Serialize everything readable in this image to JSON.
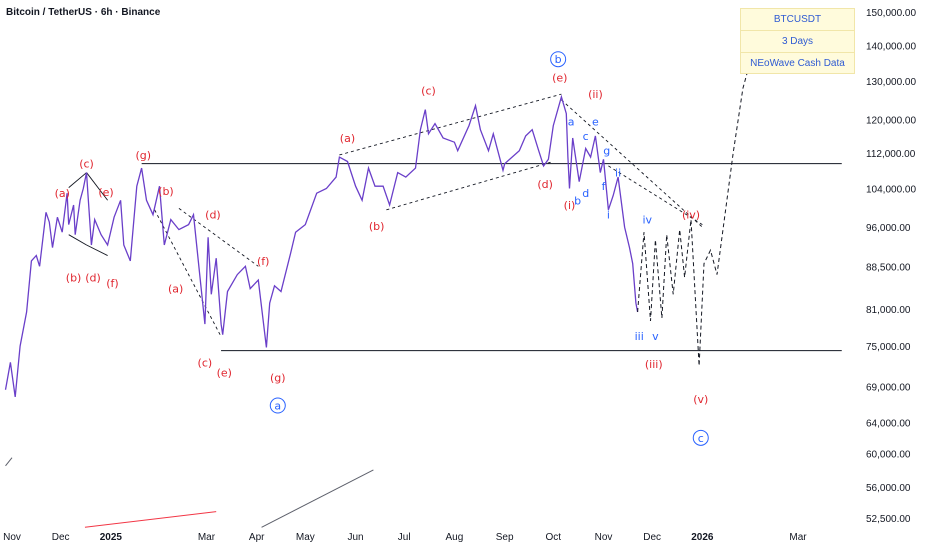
{
  "title": "Bitcoin / TetherUS · 6h · Binance",
  "info_box": {
    "symbol": "BTCUSDT",
    "period": "3 Days",
    "source": "NEoWave Cash Data"
  },
  "colors": {
    "price_line": "#6a3fc9",
    "red_label": "#e0262f",
    "blue_label": "#2962ff",
    "level_line": "#131722",
    "axis_text": "#131722"
  },
  "chart_data": {
    "type": "line",
    "title": "Bitcoin / TetherUS · 6h · Binance",
    "y_axis": {
      "scale": "log",
      "ylim": [
        51000,
        152000
      ],
      "ticks": [
        150000,
        140000,
        130000,
        120000,
        112000,
        104000,
        96000,
        88500,
        81000,
        75000,
        69000,
        64000,
        60000,
        56000,
        52500
      ],
      "tick_labels": [
        "150,000.00",
        "140,000.00",
        "130,000.00",
        "120,000.00",
        "112,000.00",
        "104,000.00",
        "96,000.00",
        "88,500.00",
        "81,000.00",
        "75,000.00",
        "69,000.00",
        "64,000.00",
        "60,000.00",
        "56,000.00",
        "52,500.00"
      ],
      "position": "right"
    },
    "x_axis": {
      "start": "2024-10-28",
      "end": "2026-03-28",
      "ticks": [
        {
          "date": "2024-11-01",
          "label": "Nov"
        },
        {
          "date": "2024-12-01",
          "label": "Dec"
        },
        {
          "date": "2025-01-01",
          "label": "2025",
          "bold": true
        },
        {
          "date": "2025-03-01",
          "label": "Mar"
        },
        {
          "date": "2025-04-01",
          "label": "Apr"
        },
        {
          "date": "2025-05-01",
          "label": "May"
        },
        {
          "date": "2025-06-01",
          "label": "Jun"
        },
        {
          "date": "2025-07-01",
          "label": "Jul"
        },
        {
          "date": "2025-08-01",
          "label": "Aug"
        },
        {
          "date": "2025-09-01",
          "label": "Sep"
        },
        {
          "date": "2025-10-01",
          "label": "Oct"
        },
        {
          "date": "2025-11-01",
          "label": "Nov"
        },
        {
          "date": "2025-12-01",
          "label": "Dec"
        },
        {
          "date": "2026-01-01",
          "label": "2026",
          "bold": true
        },
        {
          "date": "2026-03-01",
          "label": "Mar"
        }
      ]
    },
    "grid": false,
    "price_series": {
      "name": "",
      "points": [
        [
          "2024-10-28",
          68500
        ],
        [
          "2024-10-31",
          72500
        ],
        [
          "2024-11-03",
          67500
        ],
        [
          "2024-11-06",
          75000
        ],
        [
          "2024-11-10",
          80500
        ],
        [
          "2024-11-13",
          89500
        ],
        [
          "2024-11-16",
          90500
        ],
        [
          "2024-11-18",
          88500
        ],
        [
          "2024-11-22",
          99000
        ],
        [
          "2024-11-24",
          97000
        ],
        [
          "2024-11-26",
          92000
        ],
        [
          "2024-11-29",
          98000
        ],
        [
          "2024-12-02",
          95000
        ],
        [
          "2024-12-05",
          103000
        ],
        [
          "2024-12-06",
          96500
        ],
        [
          "2024-12-09",
          100500
        ],
        [
          "2024-12-10",
          94500
        ],
        [
          "2024-12-13",
          101500
        ],
        [
          "2024-12-15",
          104000
        ],
        [
          "2024-12-17",
          107500
        ],
        [
          "2024-12-18",
          102000
        ],
        [
          "2024-12-20",
          92500
        ],
        [
          "2024-12-22",
          97500
        ],
        [
          "2024-12-26",
          94500
        ],
        [
          "2024-12-30",
          92500
        ],
        [
          "2025-01-03",
          98000
        ],
        [
          "2025-01-07",
          101500
        ],
        [
          "2025-01-09",
          92500
        ],
        [
          "2025-01-13",
          89500
        ],
        [
          "2025-01-17",
          104500
        ],
        [
          "2025-01-20",
          108500
        ],
        [
          "2025-01-23",
          101500
        ],
        [
          "2025-01-27",
          98500
        ],
        [
          "2025-01-31",
          104500
        ],
        [
          "2025-02-03",
          92500
        ],
        [
          "2025-02-07",
          97500
        ],
        [
          "2025-02-12",
          95500
        ],
        [
          "2025-02-18",
          96500
        ],
        [
          "2025-02-21",
          98500
        ],
        [
          "2025-02-25",
          86500
        ],
        [
          "2025-02-28",
          78500
        ],
        [
          "2025-03-02",
          94000
        ],
        [
          "2025-03-04",
          83500
        ],
        [
          "2025-03-07",
          90000
        ],
        [
          "2025-03-10",
          78500
        ],
        [
          "2025-03-11",
          76800
        ],
        [
          "2025-03-14",
          84000
        ],
        [
          "2025-03-20",
          87000
        ],
        [
          "2025-03-25",
          88500
        ],
        [
          "2025-03-28",
          84500
        ],
        [
          "2025-04-02",
          86000
        ],
        [
          "2025-04-07",
          74800
        ],
        [
          "2025-04-09",
          82000
        ],
        [
          "2025-04-12",
          85000
        ],
        [
          "2025-04-16",
          84000
        ],
        [
          "2025-04-22",
          91000
        ],
        [
          "2025-04-25",
          95000
        ],
        [
          "2025-05-01",
          96500
        ],
        [
          "2025-05-08",
          103000
        ],
        [
          "2025-05-14",
          104000
        ],
        [
          "2025-05-20",
          106500
        ],
        [
          "2025-05-22",
          111000
        ],
        [
          "2025-05-27",
          110000
        ],
        [
          "2025-06-01",
          104500
        ],
        [
          "2025-06-05",
          101500
        ],
        [
          "2025-06-09",
          108500
        ],
        [
          "2025-06-13",
          104500
        ],
        [
          "2025-06-18",
          104500
        ],
        [
          "2025-06-22",
          100500
        ],
        [
          "2025-06-27",
          107500
        ],
        [
          "2025-07-02",
          106500
        ],
        [
          "2025-07-08",
          108500
        ],
        [
          "2025-07-11",
          117500
        ],
        [
          "2025-07-14",
          122500
        ],
        [
          "2025-07-16",
          116500
        ],
        [
          "2025-07-20",
          119000
        ],
        [
          "2025-07-25",
          115500
        ],
        [
          "2025-08-01",
          114500
        ],
        [
          "2025-08-03",
          112500
        ],
        [
          "2025-08-10",
          118500
        ],
        [
          "2025-08-14",
          123500
        ],
        [
          "2025-08-17",
          117500
        ],
        [
          "2025-08-22",
          112500
        ],
        [
          "2025-08-25",
          116500
        ],
        [
          "2025-08-31",
          108000
        ],
        [
          "2025-09-01",
          109500
        ],
        [
          "2025-09-10",
          112500
        ],
        [
          "2025-09-14",
          116000
        ],
        [
          "2025-09-18",
          117500
        ],
        [
          "2025-09-22",
          112500
        ],
        [
          "2025-09-25",
          109000
        ],
        [
          "2025-09-28",
          110500
        ],
        [
          "2025-10-01",
          118500
        ],
        [
          "2025-10-06",
          125800
        ],
        [
          "2025-10-09",
          121500
        ],
        [
          "2025-10-10",
          111000
        ],
        [
          "2025-10-11",
          104000
        ],
        [
          "2025-10-13",
          115500
        ],
        [
          "2025-10-17",
          105500
        ],
        [
          "2025-10-21",
          113000
        ],
        [
          "2025-10-24",
          111000
        ],
        [
          "2025-10-27",
          116000
        ],
        [
          "2025-10-30",
          107500
        ],
        [
          "2025-11-01",
          110500
        ],
        [
          "2025-11-04",
          99500
        ],
        [
          "2025-11-07",
          102500
        ],
        [
          "2025-11-10",
          106500
        ],
        [
          "2025-11-14",
          96000
        ],
        [
          "2025-11-17",
          92000
        ],
        [
          "2025-11-19",
          89000
        ],
        [
          "2025-11-21",
          82000
        ],
        [
          "2025-11-22",
          80500
        ]
      ]
    },
    "projection_path": {
      "style": "dashed",
      "points": [
        [
          "2025-11-22",
          80500
        ],
        [
          "2025-11-26",
          95000
        ],
        [
          "2025-11-30",
          79000
        ],
        [
          "2025-12-03",
          93500
        ],
        [
          "2025-12-07",
          79500
        ],
        [
          "2025-12-10",
          94500
        ],
        [
          "2025-12-14",
          83500
        ],
        [
          "2025-12-18",
          95500
        ],
        [
          "2025-12-21",
          86500
        ],
        [
          "2025-12-25",
          97500
        ],
        [
          "2025-12-30",
          72000
        ],
        [
          "2026-01-02",
          89000
        ],
        [
          "2026-01-06",
          91500
        ],
        [
          "2026-01-10",
          87000
        ],
        [
          "2026-01-20",
          112000
        ],
        [
          "2026-01-26",
          128000
        ],
        [
          "2026-01-30",
          134500
        ]
      ]
    },
    "horizontal_levels": [
      {
        "value": 109500,
        "from": "2025-01-20",
        "to": "2026-03-28"
      },
      {
        "value": 74300,
        "from": "2025-03-10",
        "to": "2026-03-28"
      }
    ],
    "channels": [
      {
        "style": "dashed",
        "from": [
          "2025-05-22",
          111500
        ],
        "to": [
          "2025-10-06",
          126500
        ]
      },
      {
        "style": "dashed",
        "from": [
          "2025-06-20",
          99500
        ],
        "to": [
          "2025-10-01",
          110000
        ]
      },
      {
        "style": "dashed",
        "from": [
          "2025-02-12",
          99800
        ],
        "to": [
          "2025-04-02",
          88500
        ]
      },
      {
        "style": "dashed",
        "from": [
          "2025-01-28",
          99500
        ],
        "to": [
          "2025-03-10",
          76500
        ]
      },
      {
        "style": "dashed",
        "from": [
          "2025-10-06",
          125000
        ],
        "to": [
          "2026-01-01",
          96000
        ]
      },
      {
        "style": "dashed",
        "from": [
          "2025-11-04",
          109000
        ],
        "to": [
          "2026-01-01",
          96500
        ]
      },
      {
        "style": "solid",
        "from": [
          "2024-12-06",
          104200
        ],
        "to": [
          "2024-12-17",
          107500
        ]
      },
      {
        "style": "solid",
        "from": [
          "2024-12-17",
          107500
        ],
        "to": [
          "2024-12-30",
          101500
        ]
      },
      {
        "style": "solid",
        "from": [
          "2024-12-06",
          94500
        ],
        "to": [
          "2024-12-17",
          92500
        ]
      },
      {
        "style": "solid",
        "from": [
          "2024-12-17",
          92500
        ],
        "to": [
          "2024-12-30",
          90500
        ]
      }
    ],
    "other_lines": [
      {
        "color": "#5d606b",
        "from": [
          "2024-10-28",
          58500
        ],
        "to": [
          "2024-11-01",
          59500
        ]
      },
      {
        "color": "#f23645",
        "from": [
          "2024-12-16",
          51500
        ],
        "to": [
          "2025-03-07",
          53200
        ]
      },
      {
        "color": "#5d606b",
        "from": [
          "2025-04-04",
          51500
        ],
        "to": [
          "2025-06-12",
          58000
        ]
      }
    ],
    "annotations": [
      {
        "text": "(a)",
        "date": "2024-12-02",
        "value": 103000,
        "color": "red"
      },
      {
        "text": "(c)",
        "date": "2024-12-17",
        "value": 109500,
        "color": "red"
      },
      {
        "text": "(e)",
        "date": "2024-12-29",
        "value": 103200,
        "color": "red"
      },
      {
        "text": "(b)",
        "date": "2024-12-09",
        "value": 86500,
        "color": "red"
      },
      {
        "text": "(d)",
        "date": "2024-12-21",
        "value": 86500,
        "color": "red"
      },
      {
        "text": "(f)",
        "date": "2025-01-02",
        "value": 85500,
        "color": "red"
      },
      {
        "text": "(g)",
        "date": "2025-01-21",
        "value": 111500,
        "color": "red"
      },
      {
        "text": "(b)",
        "date": "2025-02-04",
        "value": 103500,
        "color": "red"
      },
      {
        "text": "(d)",
        "date": "2025-03-05",
        "value": 98500,
        "color": "red"
      },
      {
        "text": "(a)",
        "date": "2025-02-10",
        "value": 84500,
        "color": "red"
      },
      {
        "text": "(f)",
        "date": "2025-04-05",
        "value": 89500,
        "color": "red"
      },
      {
        "text": "(c)",
        "date": "2025-02-28",
        "value": 72500,
        "color": "red"
      },
      {
        "text": "(e)",
        "date": "2025-03-12",
        "value": 71000,
        "color": "red"
      },
      {
        "text": "(g)",
        "date": "2025-04-14",
        "value": 70300,
        "color": "red"
      },
      {
        "text": "a",
        "date": "2025-04-14",
        "value": 66300,
        "color": "blue",
        "circled": true
      },
      {
        "text": "(a)",
        "date": "2025-05-27",
        "value": 115500,
        "color": "red"
      },
      {
        "text": "(b)",
        "date": "2025-06-14",
        "value": 96200,
        "color": "red"
      },
      {
        "text": "(c)",
        "date": "2025-07-16",
        "value": 127500,
        "color": "red"
      },
      {
        "text": "b",
        "date": "2025-10-04",
        "value": 136000,
        "color": "blue",
        "circled": true
      },
      {
        "text": "(e)",
        "date": "2025-10-05",
        "value": 131000,
        "color": "red"
      },
      {
        "text": "(d)",
        "date": "2025-09-26",
        "value": 105000,
        "color": "red"
      },
      {
        "text": "(ii)",
        "date": "2025-10-27",
        "value": 126500,
        "color": "red"
      },
      {
        "text": "(i)",
        "date": "2025-10-11",
        "value": 100500,
        "color": "red"
      },
      {
        "text": "a",
        "date": "2025-10-12",
        "value": 119500,
        "color": "blue"
      },
      {
        "text": "b",
        "date": "2025-10-16",
        "value": 101500,
        "color": "blue"
      },
      {
        "text": "c",
        "date": "2025-10-21",
        "value": 116000,
        "color": "blue"
      },
      {
        "text": "d",
        "date": "2025-10-21",
        "value": 103000,
        "color": "blue"
      },
      {
        "text": "e",
        "date": "2025-10-27",
        "value": 119500,
        "color": "blue"
      },
      {
        "text": "f",
        "date": "2025-11-01",
        "value": 104500,
        "color": "blue"
      },
      {
        "text": "g",
        "date": "2025-11-03",
        "value": 112500,
        "color": "blue"
      },
      {
        "text": "ii",
        "date": "2025-11-10",
        "value": 107500,
        "color": "blue"
      },
      {
        "text": "i",
        "date": "2025-11-04",
        "value": 98500,
        "color": "blue"
      },
      {
        "text": "iv",
        "date": "2025-11-28",
        "value": 97500,
        "color": "blue"
      },
      {
        "text": "(iv)",
        "date": "2025-12-25",
        "value": 98500,
        "color": "red"
      },
      {
        "text": "iii",
        "date": "2025-11-23",
        "value": 76600,
        "color": "blue"
      },
      {
        "text": "v",
        "date": "2025-12-03",
        "value": 76600,
        "color": "blue"
      },
      {
        "text": "(iii)",
        "date": "2025-12-02",
        "value": 72300,
        "color": "red"
      },
      {
        "text": "(v)",
        "date": "2025-12-31",
        "value": 67200,
        "color": "red"
      },
      {
        "text": "c",
        "date": "2025-12-31",
        "value": 62000,
        "color": "blue",
        "circled": true
      }
    ]
  }
}
